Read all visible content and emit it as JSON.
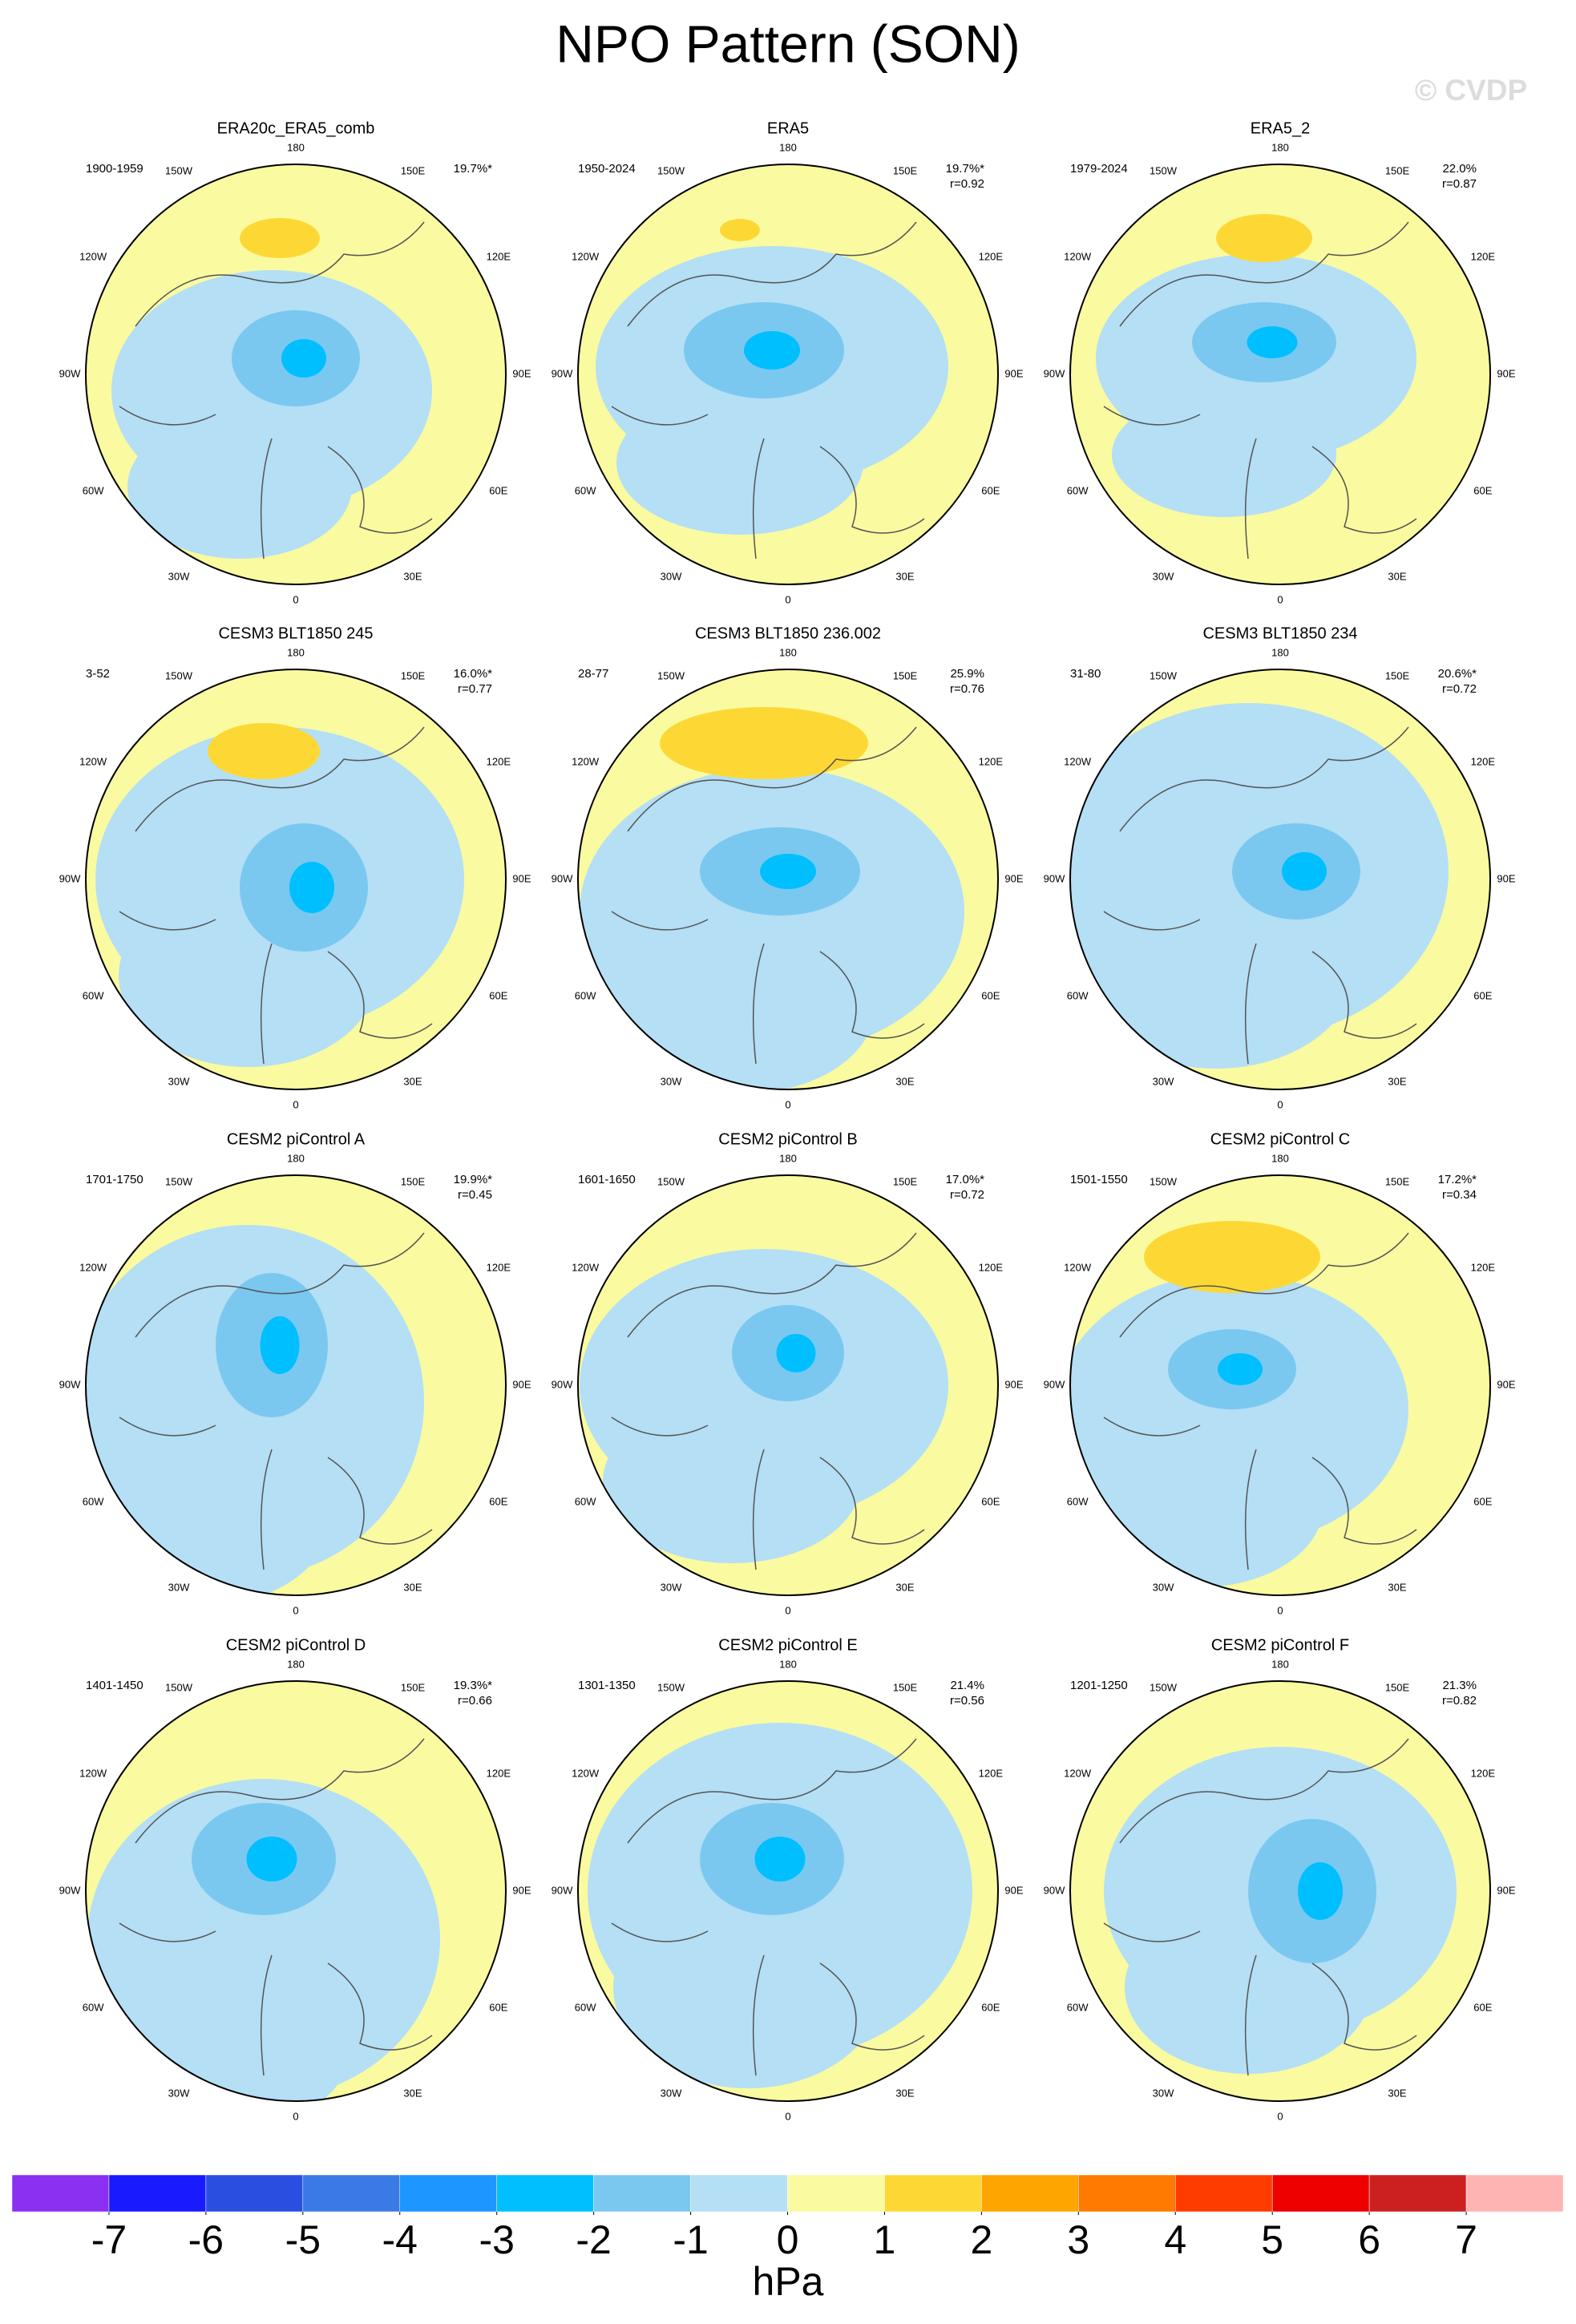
{
  "title": "NPO Pattern (SON)",
  "watermark": "© CVDP",
  "lon_labels": [
    "180",
    "150E",
    "120E",
    "90E",
    "60E",
    "30E",
    "0",
    "30W",
    "60W",
    "90W",
    "120W",
    "150W"
  ],
  "panels": [
    {
      "title": "ERA20c_ERA5_comb",
      "period": "1900-1959",
      "percent": "19.7%*"
    },
    {
      "title": "ERA5",
      "period": "1950-2024",
      "percent": "19.7%*",
      "r": "r=0.92"
    },
    {
      "title": "ERA5_2",
      "period": "1979-2024",
      "percent": "22.0%",
      "r": "r=0.87"
    },
    {
      "title": "CESM3 BLT1850 245",
      "period": "3-52",
      "percent": "16.0%*",
      "r": "r=0.77"
    },
    {
      "title": "CESM3 BLT1850 236.002",
      "period": "28-77",
      "percent": "25.9%",
      "r": "r=0.76"
    },
    {
      "title": "CESM3 BLT1850 234",
      "period": "31-80",
      "percent": "20.6%*",
      "r": "r=0.72"
    },
    {
      "title": "CESM2 piControl A",
      "period": "1701-1750",
      "percent": "19.9%*",
      "r": "r=0.45"
    },
    {
      "title": "CESM2 piControl B",
      "period": "1601-1650",
      "percent": "17.0%*",
      "r": "r=0.72"
    },
    {
      "title": "CESM2 piControl C",
      "period": "1501-1550",
      "percent": "17.2%*",
      "r": "r=0.34"
    },
    {
      "title": "CESM2 piControl D",
      "period": "1401-1450",
      "percent": "19.3%*",
      "r": "r=0.66"
    },
    {
      "title": "CESM2 piControl E",
      "period": "1301-1350",
      "percent": "21.4%",
      "r": "r=0.56"
    },
    {
      "title": "CESM2 piControl F",
      "period": "1201-1250",
      "percent": "21.3%",
      "r": "r=0.82"
    }
  ],
  "colorbar": {
    "levels": [
      -7,
      -6,
      -5,
      -4,
      -3,
      -2,
      -1,
      0,
      1,
      2,
      3,
      4,
      5,
      6,
      7
    ],
    "colors": [
      "#8b2ff0",
      "#1a1aff",
      "#2a4fe0",
      "#3a7ae6",
      "#1e96ff",
      "#00bfff",
      "#7ac8f0",
      "#b4dff5",
      "#fafaa0",
      "#fdd835",
      "#ffa500",
      "#ff7a00",
      "#ff3c00",
      "#ee0000",
      "#cc2020",
      "#ffb4b4"
    ],
    "units": "hPa"
  }
}
